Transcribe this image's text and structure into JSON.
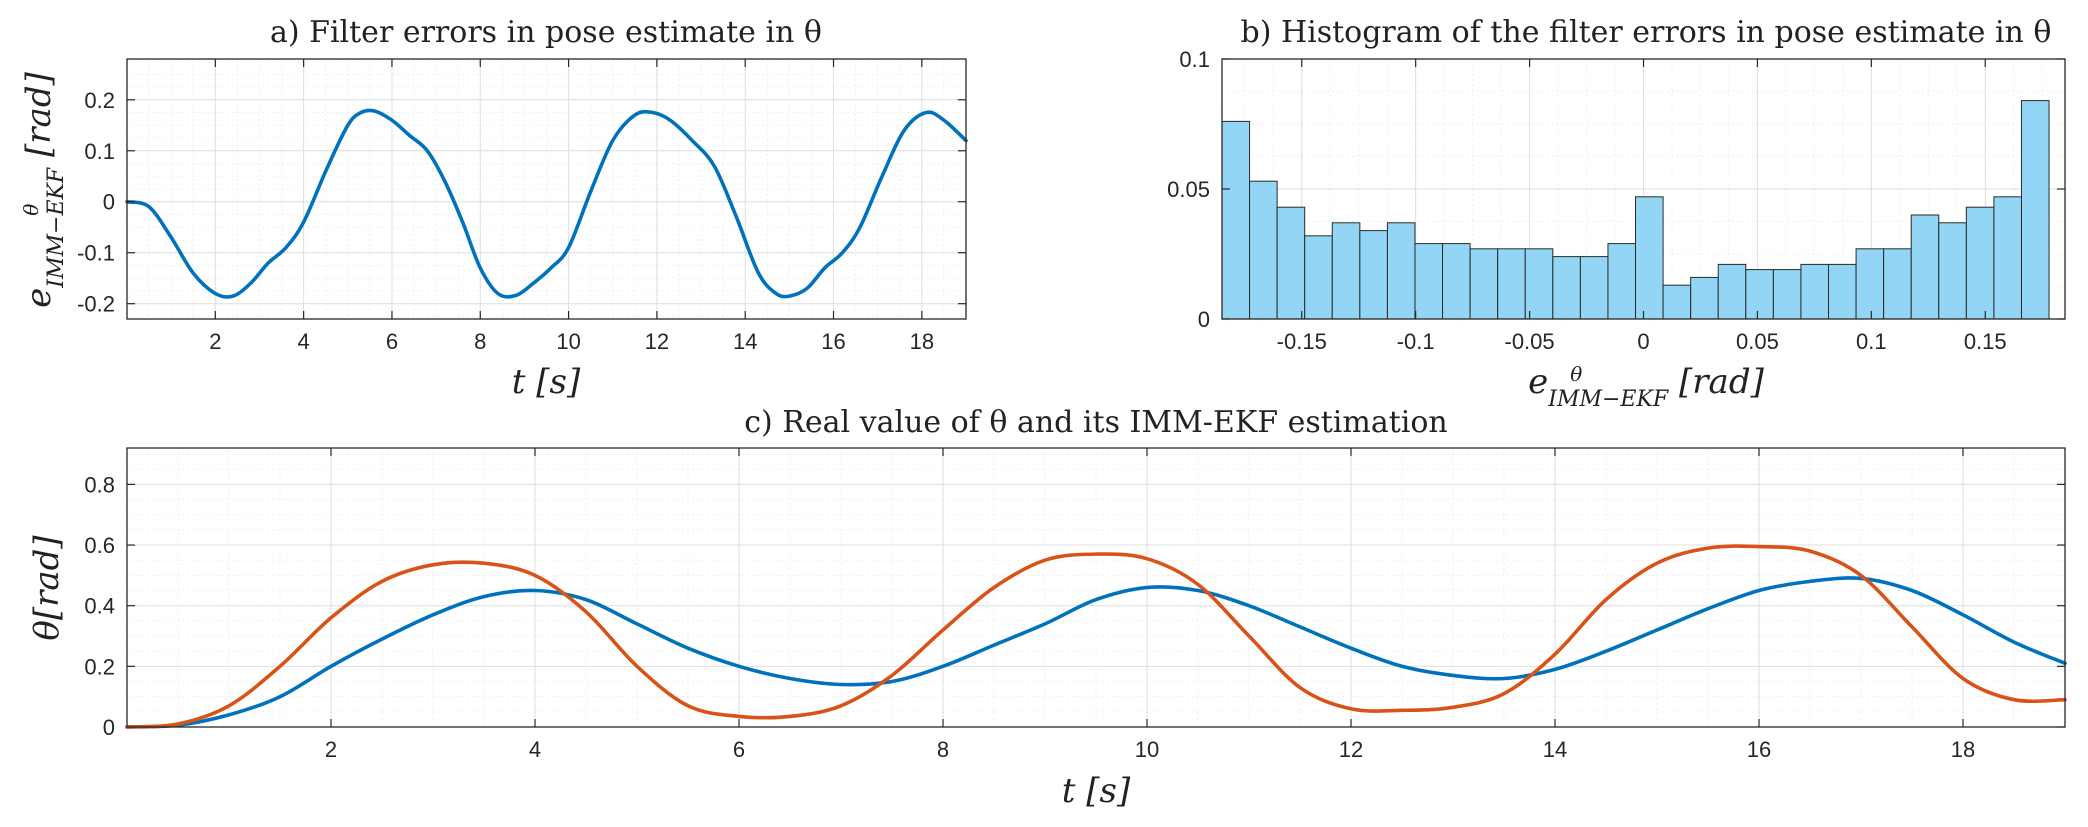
{
  "chart_data": [
    {
      "id": "a",
      "type": "line",
      "title": "a) Filter errors in pose estimate in θ",
      "xlabel": "t [s]",
      "ylabel": "e^θ_IMM−EKF [rad]",
      "xlim": [
        0,
        19
      ],
      "ylim": [
        -0.23,
        0.28
      ],
      "xticks": [
        2,
        4,
        6,
        8,
        10,
        12,
        14,
        16,
        18
      ],
      "yticks": [
        -0.2,
        -0.1,
        0,
        0.1,
        0.2
      ],
      "ytick_labels": [
        "-0.2",
        "-0.1",
        "0",
        "0.1",
        "0.2"
      ],
      "grid": true,
      "series": [
        {
          "color": "#0072bd",
          "x": [
            0,
            0.5,
            1,
            1.5,
            2,
            2.4,
            2.8,
            3.2,
            3.6,
            4,
            4.5,
            5,
            5.3,
            5.6,
            6,
            6.4,
            6.8,
            7.2,
            7.6,
            8,
            8.4,
            8.8,
            9.2,
            9.6,
            10,
            10.5,
            11,
            11.5,
            11.9,
            12.3,
            12.8,
            13.3,
            13.8,
            14.3,
            14.7,
            15,
            15.4,
            15.8,
            16.2,
            16.6,
            17.1,
            17.6,
            18.1,
            18.5,
            19
          ],
          "y": [
            0,
            -0.01,
            -0.07,
            -0.14,
            -0.18,
            -0.185,
            -0.16,
            -0.12,
            -0.09,
            -0.04,
            0.06,
            0.15,
            0.175,
            0.178,
            0.16,
            0.13,
            0.1,
            0.04,
            -0.04,
            -0.13,
            -0.18,
            -0.184,
            -0.16,
            -0.13,
            -0.09,
            0.02,
            0.12,
            0.17,
            0.175,
            0.16,
            0.12,
            0.07,
            -0.03,
            -0.14,
            -0.18,
            -0.185,
            -0.17,
            -0.13,
            -0.1,
            -0.05,
            0.05,
            0.14,
            0.175,
            0.16,
            0.12
          ]
        }
      ]
    },
    {
      "id": "b",
      "type": "bar",
      "title": "b) Histogram of the filter errors in pose estimate in θ",
      "xlabel": "e^θ_IMM−EKF [rad]",
      "ylabel": "",
      "xlim": [
        -0.185,
        0.185
      ],
      "ylim": [
        0,
        0.1
      ],
      "xticks": [
        -0.15,
        -0.1,
        -0.05,
        0,
        0.05,
        0.1,
        0.15
      ],
      "xtick_labels": [
        "-0.15",
        "-0.1",
        "-0.05",
        "0",
        "0.05",
        "0.1",
        "0.15"
      ],
      "yticks": [
        0,
        0.05,
        0.1
      ],
      "ytick_labels": [
        "0",
        "0.05",
        "0.1"
      ],
      "grid": true,
      "bin_edges_start": -0.185,
      "bin_width": 0.0121,
      "values": [
        0.076,
        0.053,
        0.043,
        0.032,
        0.037,
        0.034,
        0.037,
        0.029,
        0.029,
        0.027,
        0.027,
        0.027,
        0.024,
        0.024,
        0.029,
        0.047,
        0.013,
        0.016,
        0.021,
        0.019,
        0.019,
        0.021,
        0.021,
        0.027,
        0.027,
        0.04,
        0.037,
        0.043,
        0.047,
        0.084
      ],
      "color": "#92d5f4"
    },
    {
      "id": "c",
      "type": "line",
      "title": "c) Real value of θ and its IMM-EKF estimation",
      "xlabel": "t [s]",
      "ylabel": "θ[rad]",
      "xlim": [
        0,
        19
      ],
      "ylim": [
        0,
        0.92
      ],
      "xticks": [
        2,
        4,
        6,
        8,
        10,
        12,
        14,
        16,
        18
      ],
      "yticks": [
        0,
        0.2,
        0.4,
        0.6,
        0.8
      ],
      "ytick_labels": [
        "0",
        "0.2",
        "0.4",
        "0.6",
        "0.8"
      ],
      "grid": true,
      "series": [
        {
          "color": "#0072bd",
          "x": [
            0,
            0.5,
            1,
            1.5,
            2,
            2.5,
            3,
            3.5,
            4,
            4.5,
            5,
            5.5,
            6,
            6.5,
            7,
            7.5,
            8,
            8.5,
            9,
            9.5,
            10,
            10.5,
            11,
            11.5,
            12,
            12.5,
            13,
            13.5,
            14,
            14.5,
            15,
            15.5,
            16,
            16.5,
            17,
            17.5,
            18,
            18.5,
            19
          ],
          "y": [
            0,
            0.006,
            0.04,
            0.1,
            0.2,
            0.29,
            0.37,
            0.43,
            0.45,
            0.42,
            0.34,
            0.26,
            0.2,
            0.16,
            0.14,
            0.15,
            0.2,
            0.27,
            0.34,
            0.42,
            0.46,
            0.45,
            0.4,
            0.33,
            0.26,
            0.2,
            0.17,
            0.16,
            0.19,
            0.25,
            0.32,
            0.39,
            0.45,
            0.48,
            0.49,
            0.45,
            0.37,
            0.28,
            0.21
          ]
        },
        {
          "color": "#d95319",
          "x": [
            0,
            0.5,
            1,
            1.5,
            2,
            2.5,
            3,
            3.5,
            4,
            4.5,
            5,
            5.5,
            6,
            6.5,
            7,
            7.5,
            8,
            8.5,
            9,
            9.5,
            10,
            10.5,
            11,
            11.5,
            12,
            12.5,
            13,
            13.5,
            14,
            14.5,
            15,
            15.5,
            16,
            16.5,
            17,
            17.5,
            18,
            18.5,
            19
          ],
          "y": [
            0,
            0.01,
            0.07,
            0.2,
            0.36,
            0.48,
            0.535,
            0.54,
            0.5,
            0.38,
            0.2,
            0.07,
            0.035,
            0.035,
            0.07,
            0.17,
            0.32,
            0.46,
            0.55,
            0.57,
            0.555,
            0.47,
            0.3,
            0.13,
            0.06,
            0.055,
            0.065,
            0.11,
            0.24,
            0.42,
            0.54,
            0.59,
            0.595,
            0.58,
            0.5,
            0.33,
            0.16,
            0.09,
            0.09
          ]
        }
      ]
    }
  ]
}
